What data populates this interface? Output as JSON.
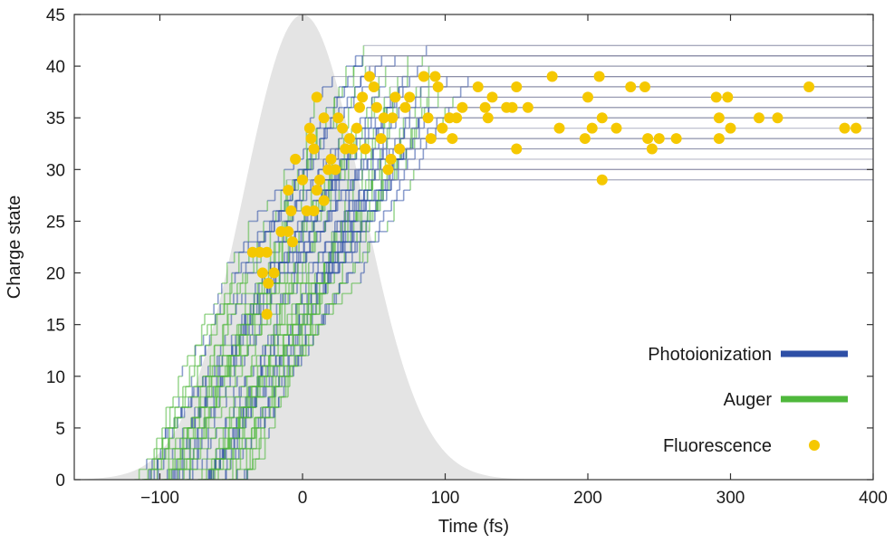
{
  "chart_data": {
    "type": "scatter",
    "title": "",
    "xlabel": "Time (fs)",
    "ylabel": "Charge state",
    "xlim": [
      -160,
      400
    ],
    "ylim": [
      0,
      45
    ],
    "xticks": [
      -100,
      0,
      100,
      200,
      300,
      400
    ],
    "yticks": [
      0,
      5,
      10,
      15,
      20,
      25,
      30,
      35,
      40,
      45
    ],
    "grid": false,
    "legend_position": "bottom-right",
    "colors": {
      "photoionization": "#2e4fa6",
      "auger": "#4fb83c",
      "fluorescence": "#f5c800",
      "pulse": "#e4e4e4",
      "trajectory_line": "#8a8ea6"
    },
    "pulse": {
      "center": 0,
      "sigma": 42,
      "peak": 45
    },
    "series": [
      {
        "name": "Photoionization",
        "kind": "step-trajectories",
        "description_color": "#2e4fa6"
      },
      {
        "name": "Auger",
        "kind": "step-trajectories",
        "description_color": "#4fb83c"
      },
      {
        "name": "Fluorescence",
        "kind": "points",
        "points": [
          [
            -35,
            22
          ],
          [
            -30,
            22
          ],
          [
            -25,
            22
          ],
          [
            -28,
            20
          ],
          [
            -20,
            20
          ],
          [
            -24,
            19
          ],
          [
            -25,
            16
          ],
          [
            -15,
            24
          ],
          [
            -10,
            24
          ],
          [
            -7,
            23
          ],
          [
            -8,
            26
          ],
          [
            -10,
            28
          ],
          [
            -5,
            31
          ],
          [
            0,
            29
          ],
          [
            3,
            26
          ],
          [
            8,
            26
          ],
          [
            10,
            28
          ],
          [
            12,
            29
          ],
          [
            15,
            27
          ],
          [
            18,
            30
          ],
          [
            20,
            31
          ],
          [
            23,
            30
          ],
          [
            10,
            37
          ],
          [
            5,
            34
          ],
          [
            6,
            33
          ],
          [
            8,
            32
          ],
          [
            15,
            35
          ],
          [
            25,
            35
          ],
          [
            28,
            34
          ],
          [
            30,
            32
          ],
          [
            33,
            33
          ],
          [
            35,
            32
          ],
          [
            38,
            34
          ],
          [
            40,
            36
          ],
          [
            42,
            37
          ],
          [
            44,
            32
          ],
          [
            47,
            39
          ],
          [
            50,
            38
          ],
          [
            52,
            36
          ],
          [
            55,
            33
          ],
          [
            57,
            35
          ],
          [
            60,
            30
          ],
          [
            62,
            31
          ],
          [
            63,
            35
          ],
          [
            65,
            37
          ],
          [
            68,
            32
          ],
          [
            72,
            36
          ],
          [
            75,
            37
          ],
          [
            85,
            39
          ],
          [
            88,
            35
          ],
          [
            90,
            33
          ],
          [
            93,
            39
          ],
          [
            95,
            38
          ],
          [
            98,
            34
          ],
          [
            103,
            35
          ],
          [
            105,
            33
          ],
          [
            108,
            35
          ],
          [
            112,
            36
          ],
          [
            123,
            38
          ],
          [
            128,
            36
          ],
          [
            130,
            35
          ],
          [
            133,
            37
          ],
          [
            143,
            36
          ],
          [
            147,
            36
          ],
          [
            150,
            38
          ],
          [
            150,
            32
          ],
          [
            158,
            36
          ],
          [
            175,
            39
          ],
          [
            180,
            34
          ],
          [
            198,
            33
          ],
          [
            200,
            37
          ],
          [
            203,
            34
          ],
          [
            208,
            39
          ],
          [
            210,
            35
          ],
          [
            210,
            29
          ],
          [
            220,
            34
          ],
          [
            230,
            38
          ],
          [
            240,
            38
          ],
          [
            242,
            33
          ],
          [
            245,
            32
          ],
          [
            250,
            33
          ],
          [
            262,
            33
          ],
          [
            290,
            37
          ],
          [
            292,
            35
          ],
          [
            292,
            33
          ],
          [
            298,
            37
          ],
          [
            300,
            34
          ],
          [
            320,
            35
          ],
          [
            333,
            35
          ],
          [
            355,
            38
          ],
          [
            380,
            34
          ],
          [
            388,
            34
          ]
        ]
      }
    ]
  }
}
